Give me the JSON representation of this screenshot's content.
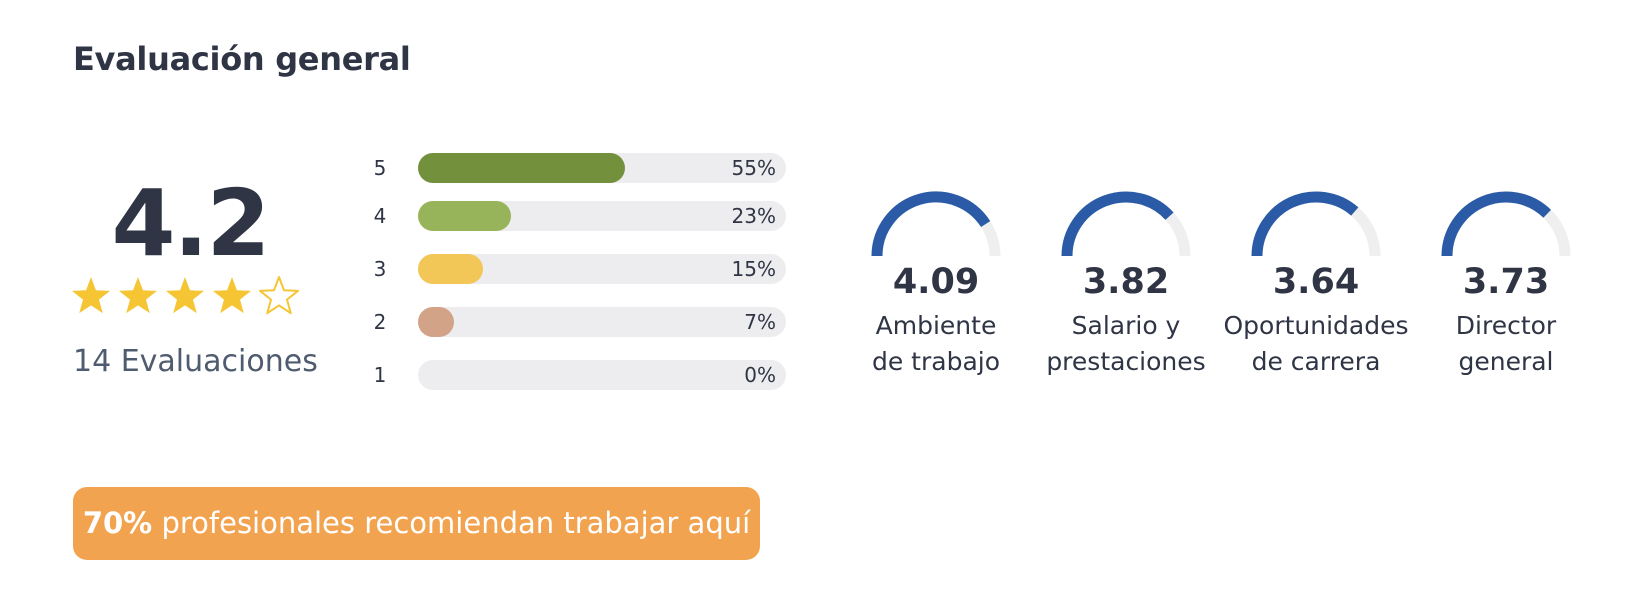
{
  "header": {
    "title": "Evaluación general"
  },
  "summary": {
    "score": "4.2",
    "rating": 4.2,
    "stars_total": 5,
    "reviews_label": "14 Evaluaciones",
    "star_color": "#f5c533"
  },
  "distribution": [
    {
      "level": "5",
      "percent": 55,
      "percent_label": "55%",
      "color": "#73913c"
    },
    {
      "level": "4",
      "percent": 23,
      "percent_label": "23%",
      "color": "#97b45a"
    },
    {
      "level": "3",
      "percent": 15,
      "percent_label": "15%",
      "color": "#f2c657"
    },
    {
      "level": "2",
      "percent": 7,
      "percent_label": "7%",
      "color": "#d3a388"
    },
    {
      "level": "1",
      "percent": 0,
      "percent_label": "0%",
      "color": "#c7c7cc"
    }
  ],
  "categories": [
    {
      "value": "4.09",
      "score": 4.09,
      "label_line1": "Ambiente",
      "label_line2": "de trabajo"
    },
    {
      "value": "3.82",
      "score": 3.82,
      "label_line1": "Salario y",
      "label_line2": "prestaciones"
    },
    {
      "value": "3.64",
      "score": 3.64,
      "label_line1": "Oportunidades",
      "label_line2": "de carrera"
    },
    {
      "value": "3.73",
      "score": 3.73,
      "label_line1": "Director",
      "label_line2": "general"
    }
  ],
  "gauge_colors": {
    "fill": "#2b5ba6",
    "track": "#efefef"
  },
  "recommend": {
    "percent_label": "70%",
    "text": " profesionales recomiendan trabajar aquí",
    "color": "#f2a350"
  }
}
